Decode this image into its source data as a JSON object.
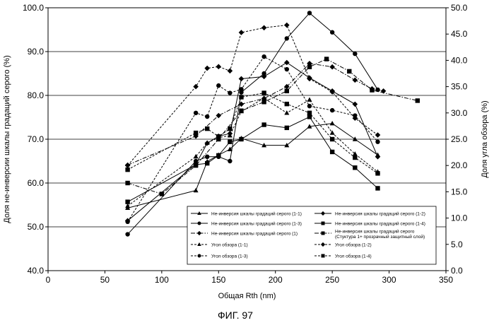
{
  "caption": "ФИГ. 97",
  "chart_data": {
    "type": "line",
    "xlabel": "Общая Rth (nm)",
    "ylabel_left": "Доля не-инверсии шкалы градаций серого (%)",
    "ylabel_right": "Доля угла обзора (%)",
    "xlim": [
      0,
      350
    ],
    "ylim_left": [
      40,
      100
    ],
    "ylim_right": [
      0,
      50
    ],
    "xticks": [
      "0",
      "50",
      "100",
      "150",
      "200",
      "250",
      "300",
      "350"
    ],
    "yticks_left": [
      "40.0",
      "50.0",
      "60.0",
      "70.0",
      "80.0",
      "90.0",
      "100.0"
    ],
    "yticks_right": [
      "0.0",
      "5.0",
      "10.0",
      "15.0",
      "20.0",
      "25.0",
      "30.0",
      "35.0",
      "40.0",
      "45.0",
      "50.0"
    ],
    "grid": "horizontal",
    "legend_position": "lower-right",
    "series": [
      {
        "name": "Не-инверсия шкалы градаций серого (1-1)",
        "axis": "left",
        "dash": "solid",
        "marker": "triangle",
        "x": [
          70,
          130,
          140,
          150,
          160,
          170,
          190,
          210,
          230,
          250,
          270,
          290
        ],
        "y": [
          54.3,
          58.3,
          64.9,
          66.4,
          67.7,
          70.2,
          68.6,
          68.6,
          72.9,
          73.6,
          70.0,
          66.4
        ]
      },
      {
        "name": "Не-инверсия шкалы градаций серого (1-2)",
        "axis": "left",
        "dash": "solid",
        "marker": "diamond",
        "x": [
          70,
          130,
          140,
          150,
          160,
          170,
          190,
          210,
          230,
          250,
          270,
          290
        ],
        "y": [
          51.4,
          64.3,
          69.1,
          70.7,
          71.3,
          83.8,
          84.3,
          87.5,
          84.0,
          81.0,
          78.0,
          66.0
        ]
      },
      {
        "name": "Не-инверсия шкалы градаций серого (1-3)",
        "axis": "left",
        "dash": "solid",
        "marker": "circle",
        "x": [
          70,
          130,
          140,
          150,
          160,
          170,
          190,
          210,
          230,
          250,
          270,
          290
        ],
        "y": [
          48.3,
          65.0,
          66.0,
          66.0,
          65.0,
          80.7,
          85.0,
          93.0,
          98.8,
          94.4,
          89.5,
          81.3
        ]
      },
      {
        "name": "Не-инверсия шкалы градаций серого (1-4)",
        "axis": "left",
        "dash": "solid",
        "marker": "square",
        "x": [
          70,
          130,
          140,
          150,
          160,
          170,
          190,
          210,
          230,
          250,
          270,
          290
        ],
        "y": [
          55.7,
          64.2,
          64.5,
          66.3,
          69.4,
          70.0,
          73.3,
          72.6,
          75.1,
          67.1,
          63.5,
          58.8
        ]
      },
      {
        "name": "Не-инверсия шкалы градаций серого (1)",
        "axis": "left",
        "dash": "dashdot",
        "marker": "diamond",
        "x": [
          70,
          130,
          150,
          170,
          190,
          210,
          230,
          250,
          270,
          285,
          295
        ],
        "y": [
          64.1,
          70.7,
          75.4,
          78.0,
          79.3,
          82.0,
          87.3,
          86.5,
          83.5,
          81.5,
          81.0
        ]
      },
      {
        "name": "Не-инверсия шкалы градаций серого (Стуктура 1+ прозрачный защитный слой)",
        "axis": "left",
        "dash": "dashdot",
        "marker": "square",
        "x": [
          70,
          100,
          130,
          150,
          170,
          190,
          210,
          230,
          245,
          265,
          285,
          325
        ],
        "y": [
          60.0,
          57.5,
          64.0,
          70.0,
          76.5,
          78.5,
          81.0,
          86.5,
          88.3,
          85.5,
          81.2,
          78.8
        ]
      },
      {
        "name": "Угол обзора (1-1)",
        "axis": "right",
        "dash": "dashed",
        "marker": "triangle",
        "x": [
          70,
          130,
          140,
          150,
          160,
          170,
          190,
          210,
          230,
          250,
          270,
          290
        ],
        "y": [
          12.3,
          21.7,
          24.3,
          25.3,
          25.7,
          30.3,
          32.8,
          30.0,
          32.5,
          26.2,
          22.2,
          18.8
        ]
      },
      {
        "name": "Угол обзора (1-2)",
        "axis": "right",
        "dash": "dashed",
        "marker": "diamond",
        "x": [
          70,
          130,
          140,
          150,
          160,
          170,
          190,
          210,
          230,
          250,
          270,
          290
        ],
        "y": [
          20.0,
          35.0,
          38.5,
          38.8,
          38.0,
          45.3,
          46.2,
          46.7,
          36.5,
          34.0,
          29.0,
          25.8
        ]
      },
      {
        "name": "Угол обзора (1-3)",
        "axis": "right",
        "dash": "dashed",
        "marker": "circle",
        "x": [
          70,
          130,
          140,
          150,
          160,
          170,
          190,
          210,
          230,
          250,
          270,
          290
        ],
        "y": [
          9.3,
          30.0,
          29.3,
          35.2,
          33.8,
          34.5,
          40.7,
          38.3,
          31.3,
          30.5,
          29.5,
          24.5
        ]
      },
      {
        "name": "Угол обзора (1-4)",
        "axis": "right",
        "dash": "dashed",
        "marker": "square",
        "x": [
          70,
          130,
          140,
          150,
          160,
          170,
          190,
          210,
          230,
          250,
          270,
          290
        ],
        "y": [
          19.2,
          26.2,
          27.0,
          25.5,
          27.0,
          33.0,
          33.8,
          31.7,
          30.0,
          25.0,
          21.5,
          18.5
        ]
      }
    ]
  }
}
